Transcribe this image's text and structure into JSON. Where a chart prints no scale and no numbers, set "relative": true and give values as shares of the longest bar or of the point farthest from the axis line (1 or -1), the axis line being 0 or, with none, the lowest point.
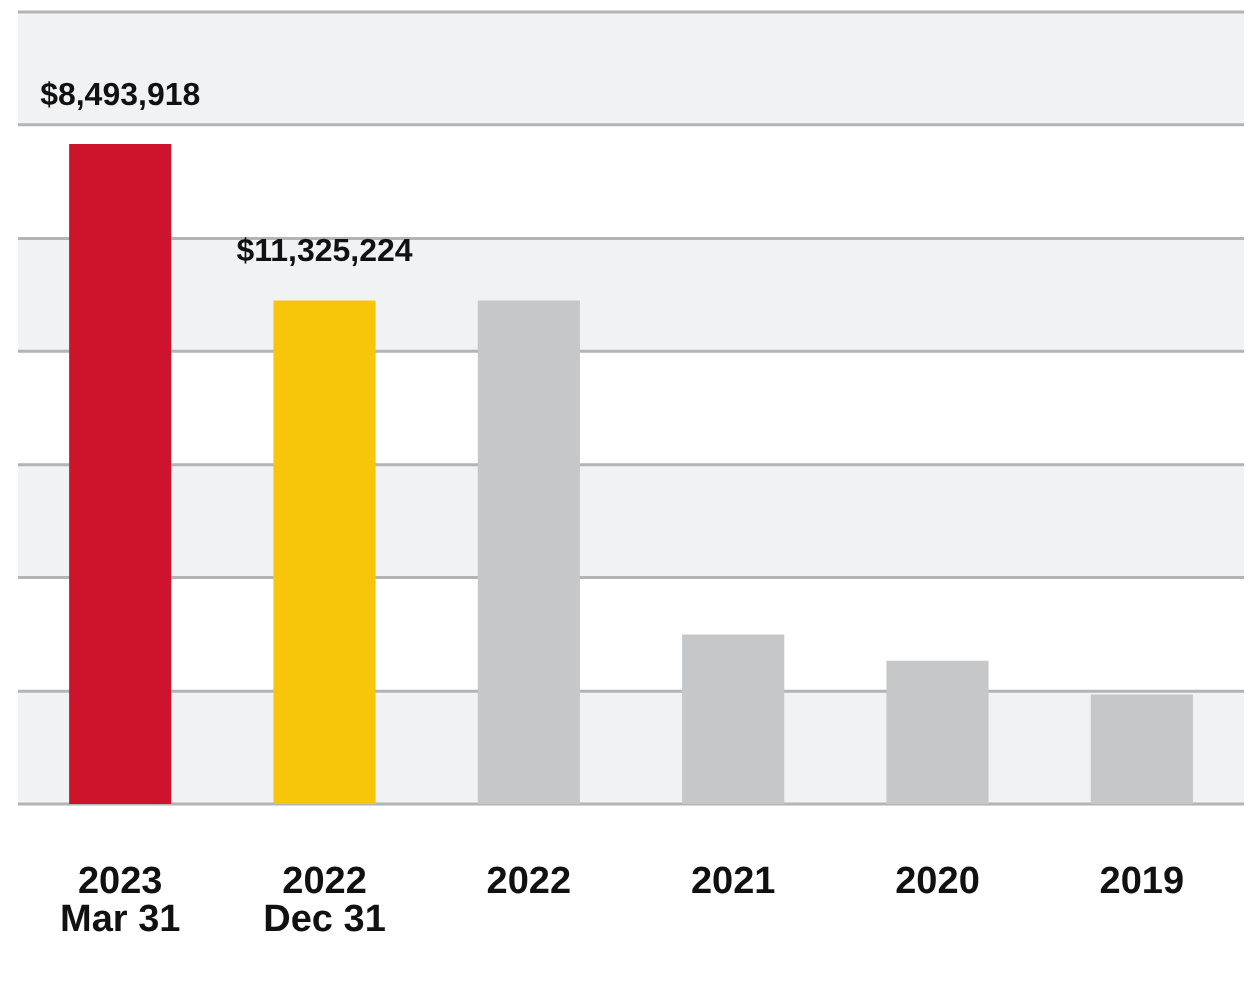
{
  "chart_data": {
    "type": "bar",
    "relative": true,
    "grid": "y",
    "categories": [
      "2023\nMar 31",
      "2022\nDec 31",
      "2022",
      "2021",
      "2020",
      "2019"
    ],
    "values": [
      1,
      0.763,
      0.763,
      0.257,
      0.217,
      0.166
    ],
    "colors": [
      "#ce132d",
      "#f7c60a",
      "#c6c7c9",
      "#c6c7c9",
      "#c6c7c9",
      "#c6c7c9"
    ],
    "bands": [
      {
        "axis": "y",
        "from": 0,
        "to": 0.171,
        "color": "#f1f2f4"
      },
      {
        "axis": "y",
        "from": 0.343,
        "to": 0.514,
        "color": "#f1f2f4"
      },
      {
        "axis": "y",
        "from": 0.686,
        "to": 0.857,
        "color": "#f1f2f4"
      },
      {
        "axis": "y",
        "from": 1.029,
        "to": 1.2,
        "color": "#f1f2f4"
      }
    ],
    "annotations": [
      {
        "text": "$8,493,918",
        "x": "2023\nMar 31",
        "y": 1
      },
      {
        "text": "$11,325,224",
        "x": "2022\nDec 31",
        "y": 0.763
      }
    ]
  }
}
